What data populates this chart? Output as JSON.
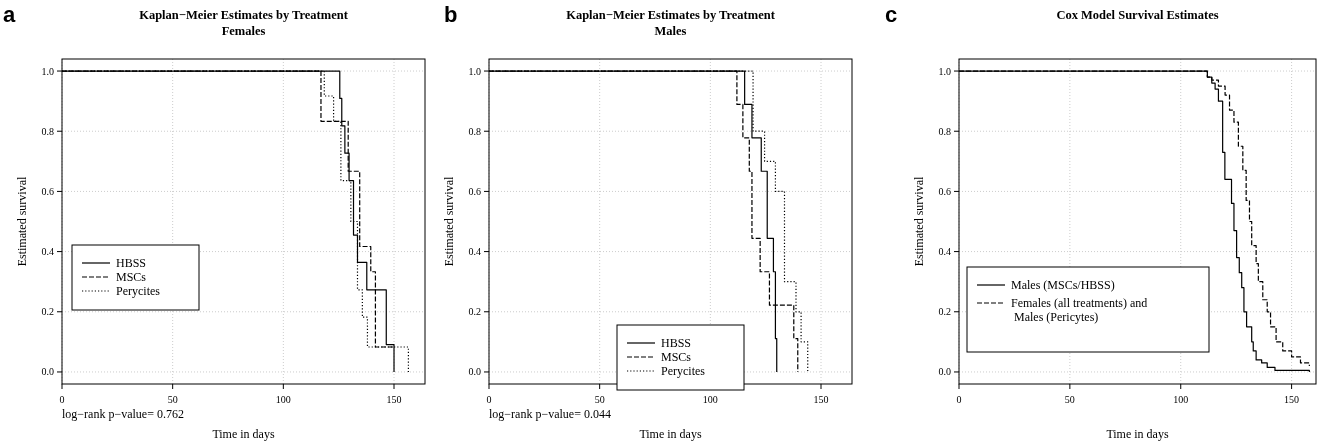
{
  "chart_data": [
    {
      "type": "step",
      "title": "Kaplan−Meier Estimates by Treatment",
      "subtitle": "Females",
      "xlabel": "Time in days",
      "ylabel": "Estimated survival",
      "annotations": [
        "a",
        "log−rank p−value= 0.762"
      ],
      "xlim": [
        0,
        164
      ],
      "ylim": [
        -0.04,
        1.04
      ],
      "xticks": [
        0,
        50,
        100,
        150
      ],
      "yticks": [
        {
          "value": 0,
          "label": "0.0"
        },
        {
          "value": 0.2,
          "label": "0.2"
        },
        {
          "value": 0.4,
          "label": "0.4"
        },
        {
          "value": 0.6,
          "label": "0.6"
        },
        {
          "value": 0.8,
          "label": "0.8"
        },
        {
          "value": 1,
          "label": "1.0"
        }
      ],
      "grid": true,
      "legend": "left",
      "series": [
        {
          "name": "HBSS",
          "color": "#000000",
          "line_style": "solid",
          "x": [
            0,
            125.5,
            126.4,
            127.8,
            129.7,
            131.7,
            133.5,
            137.7,
            146.5,
            150
          ],
          "values": [
            1,
            0.909,
            0.818,
            0.727,
            0.636,
            0.455,
            0.364,
            0.273,
            0.091,
            0
          ]
        },
        {
          "name": "MSCs",
          "color": "#000000",
          "line_style": "dashed",
          "x": [
            0,
            117,
            129.3,
            134.5,
            139.5,
            141.6,
            150
          ],
          "values": [
            1,
            0.833,
            0.667,
            0.417,
            0.333,
            0.083,
            0.083
          ]
        },
        {
          "name": "Perycites",
          "color": "#000000",
          "line_style": "dotted",
          "x": [
            0,
            118.5,
            122.7,
            126,
            130.5,
            133.5,
            135.7,
            138,
            156.5
          ],
          "values": [
            1,
            0.917,
            0.833,
            0.636,
            0.5,
            0.273,
            0.182,
            0.083,
            0
          ]
        }
      ]
    },
    {
      "type": "step",
      "title": "Kaplan−Meier Estimates by Treatment",
      "subtitle": "Males",
      "xlabel": "Time in days",
      "ylabel": "Estimated survival",
      "annotations": [
        "b",
        "log−rank p−value= 0.044"
      ],
      "xlim": [
        0,
        164
      ],
      "ylim": [
        -0.04,
        1.04
      ],
      "xticks": [
        0,
        50,
        100,
        150
      ],
      "yticks": [
        {
          "value": 0,
          "label": "0.0"
        },
        {
          "value": 0.2,
          "label": "0.2"
        },
        {
          "value": 0.4,
          "label": "0.4"
        },
        {
          "value": 0.6,
          "label": "0.6"
        },
        {
          "value": 0.8,
          "label": "0.8"
        },
        {
          "value": 1,
          "label": "1.0"
        }
      ],
      "grid": true,
      "legend": "bottom",
      "series": [
        {
          "name": "HBSS",
          "color": "#000000",
          "line_style": "solid",
          "x": [
            0,
            115.5,
            118.8,
            123,
            125.7,
            128.5,
            129.4,
            130
          ],
          "values": [
            1,
            0.889,
            0.778,
            0.667,
            0.444,
            0.333,
            0.111,
            0
          ]
        },
        {
          "name": "MSCs",
          "color": "#000000",
          "line_style": "dashed",
          "x": [
            0,
            112,
            114.7,
            117.6,
            118.8,
            122.5,
            126.7,
            137.7,
            139.5
          ],
          "values": [
            1,
            0.889,
            0.778,
            0.667,
            0.444,
            0.333,
            0.222,
            0.111,
            0
          ]
        },
        {
          "name": "Perycites",
          "color": "#000000",
          "line_style": "dotted",
          "x": [
            0,
            119.3,
            124.5,
            129.4,
            133.5,
            138.7,
            141,
            144
          ],
          "values": [
            1,
            0.8,
            0.7,
            0.6,
            0.3,
            0.2,
            0.1,
            0
          ]
        }
      ]
    },
    {
      "type": "step",
      "title": "Cox Model Survival Estimates",
      "xlabel": "Time in days",
      "ylabel": "Estimated survival",
      "annotations": [
        "c"
      ],
      "xlim": [
        0,
        161
      ],
      "ylim": [
        -0.04,
        1.04
      ],
      "xticks": [
        0,
        50,
        100,
        150
      ],
      "yticks": [
        {
          "value": 0,
          "label": "0.0"
        },
        {
          "value": 0.2,
          "label": "0.2"
        },
        {
          "value": 0.4,
          "label": "0.4"
        },
        {
          "value": 0.6,
          "label": "0.6"
        },
        {
          "value": 0.8,
          "label": "0.8"
        },
        {
          "value": 1,
          "label": "1.0"
        }
      ],
      "grid": true,
      "legend": "bottom left",
      "series": [
        {
          "name": "Males (MSCs/HBSS)",
          "color": "#000000",
          "line_style": "solid",
          "x": [
            0,
            112,
            114,
            115.5,
            117,
            118.9,
            119.9,
            122.9,
            124,
            125.2,
            126.4,
            127.5,
            128.5,
            129.7,
            132,
            132.7,
            134,
            136.5,
            139,
            142.5,
            158
          ],
          "values": [
            1,
            0.98,
            0.96,
            0.94,
            0.9,
            0.73,
            0.64,
            0.56,
            0.47,
            0.38,
            0.33,
            0.28,
            0.2,
            0.15,
            0.1,
            0.07,
            0.04,
            0.03,
            0.015,
            0.005,
            0
          ]
        },
        {
          "name": "Females (all treatments) and\n Males (Pericytes)",
          "color": "#000000",
          "line_style": "dashed",
          "x": [
            0,
            112,
            114,
            117,
            120,
            122,
            124,
            126,
            128,
            129.5,
            131,
            132,
            134,
            135,
            137,
            139,
            140.5,
            143,
            146,
            150,
            154,
            158
          ],
          "values": [
            1,
            0.98,
            0.97,
            0.95,
            0.92,
            0.87,
            0.83,
            0.75,
            0.67,
            0.57,
            0.5,
            0.42,
            0.36,
            0.3,
            0.24,
            0.2,
            0.15,
            0.1,
            0.07,
            0.05,
            0.03,
            0.02
          ]
        }
      ]
    }
  ]
}
